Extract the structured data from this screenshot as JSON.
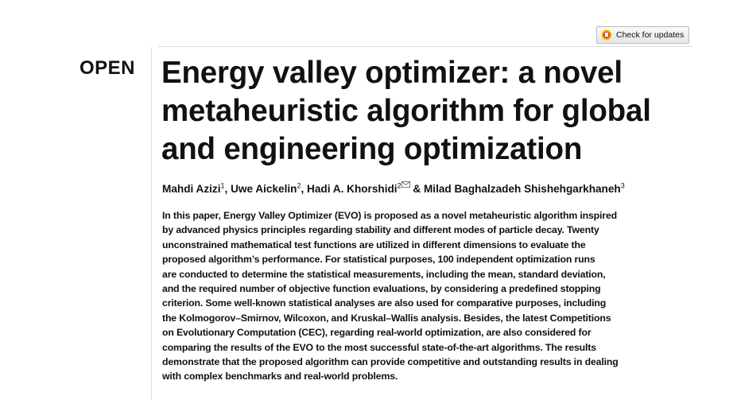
{
  "open_label": "OPEN",
  "check_updates": "Check for updates",
  "title_lines": [
    "Energy valley optimizer: a novel",
    "metaheuristic algorithm for global",
    "and engineering optimization"
  ],
  "authors": [
    {
      "name": "Mahdi Azizi",
      "sup": "1"
    },
    {
      "name": "Uwe Aickelin",
      "sup": "2"
    },
    {
      "name": "Hadi A. Khorshidi",
      "sup": "2"
    },
    {
      "name": "Milad Baghalzadeh Shishehgarkhaneh",
      "sup": "3"
    }
  ],
  "author_separators": [
    ", ",
    ", ",
    " & "
  ],
  "abstract_lines": [
    "In this paper, Energy Valley Optimizer (EVO) is proposed as a novel metaheuristic algorithm inspired",
    "by advanced physics principles regarding stability and different modes of particle decay. Twenty",
    "unconstrained mathematical test functions are utilized in different dimensions to evaluate the",
    "proposed algorithm’s performance. For statistical purposes, 100 independent optimization runs",
    "are conducted to determine the statistical measurements, including the mean, standard deviation,",
    "and the required number of objective function evaluations, by considering a predefined stopping",
    "criterion. Some well-known statistical analyses are also used for comparative purposes, including",
    "the Kolmogorov–Smirnov, Wilcoxon, and Kruskal–Wallis analysis. Besides, the latest Competitions",
    "on Evolutionary Computation (CEC), regarding real-world optimization, are also considered for",
    "comparing the results of the EVO to the most successful state-of-the-art algorithms. The results",
    "demonstrate that the proposed algorithm can provide competitive and outstanding results in dealing",
    "with complex benchmarks and real-world problems."
  ]
}
